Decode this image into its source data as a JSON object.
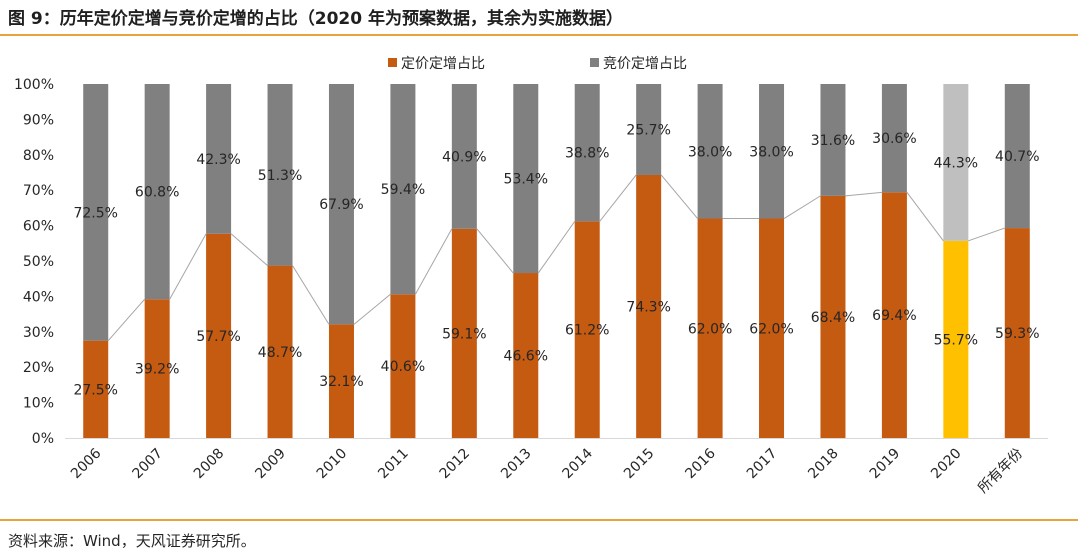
{
  "header": {
    "title": "图 9：历年定价定增与竞价定增的占比（2020 年为预案数据，其余为实施数据）"
  },
  "footer": {
    "source": "资料来源：Wind，天风证券研究所。"
  },
  "chart_data": {
    "type": "bar",
    "stacked": true,
    "categories": [
      "2006",
      "2007",
      "2008",
      "2009",
      "2010",
      "2011",
      "2012",
      "2013",
      "2014",
      "2015",
      "2016",
      "2017",
      "2018",
      "2019",
      "2020",
      "所有年份"
    ],
    "series": [
      {
        "name": "定价定增占比",
        "color": "#c55a11",
        "highlight_color": "#ffc000",
        "values": [
          27.5,
          39.2,
          57.7,
          48.7,
          32.1,
          40.6,
          59.1,
          46.6,
          61.2,
          74.3,
          62.0,
          62.0,
          68.4,
          69.4,
          55.7,
          59.3
        ],
        "labels": [
          "27.5%",
          "39.2%",
          "57.7%",
          "48.7%",
          "32.1%",
          "40.6%",
          "59.1%",
          "46.6%",
          "61.2%",
          "74.3%",
          "62.0%",
          "62.0%",
          "68.4%",
          "69.4%",
          "55.7%",
          "59.3%"
        ]
      },
      {
        "name": "竞价定增占比",
        "color": "#808080",
        "highlight_color": "#bfbfbf",
        "values": [
          72.5,
          60.8,
          42.3,
          51.3,
          67.9,
          59.4,
          40.9,
          53.4,
          38.8,
          25.7,
          38.0,
          38.0,
          31.6,
          30.6,
          44.3,
          40.7
        ],
        "labels": [
          "72.5%",
          "60.8%",
          "42.3%",
          "51.3%",
          "67.9%",
          "59.4%",
          "40.9%",
          "53.4%",
          "38.8%",
          "25.7%",
          "38.0%",
          "38.0%",
          "31.6%",
          "30.6%",
          "44.3%",
          "40.7%"
        ]
      }
    ],
    "highlight_category": "2020",
    "series_line_color": "#a6a6a6",
    "ylim": [
      0,
      100
    ],
    "yticks": [
      "0%",
      "10%",
      "20%",
      "30%",
      "40%",
      "50%",
      "60%",
      "70%",
      "80%",
      "90%",
      "100%"
    ],
    "legend_position": "top",
    "grid": false
  }
}
